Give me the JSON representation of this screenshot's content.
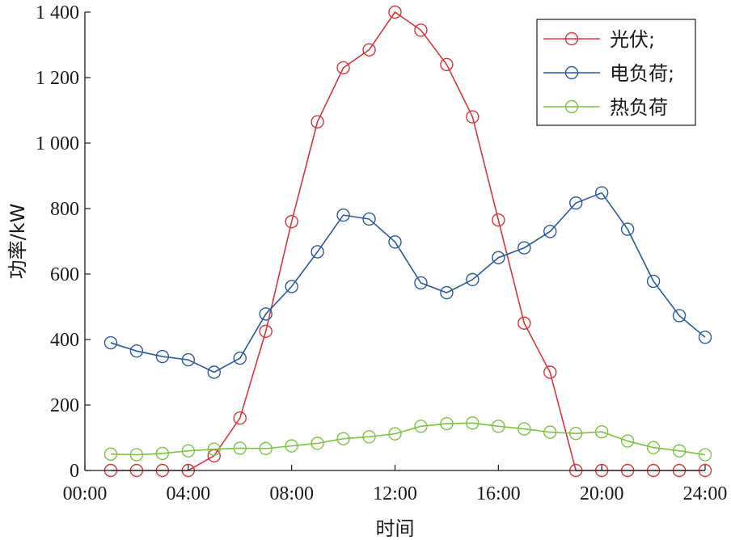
{
  "chart_data": {
    "type": "line",
    "title": "",
    "xlabel": "时间",
    "ylabel": "功率/kW",
    "x_tick_labels": [
      "00:00",
      "04:00",
      "08:00",
      "12:00",
      "16:00",
      "20:00",
      "24:00"
    ],
    "y_tick_labels": [
      "0",
      "200",
      "400",
      "600",
      "800",
      "1 000",
      "1 200",
      "1 400"
    ],
    "xlim": [
      0,
      24
    ],
    "ylim": [
      0,
      1400
    ],
    "x_ticks": [
      0,
      4,
      8,
      12,
      16,
      20,
      24
    ],
    "y_ticks": [
      0,
      200,
      400,
      600,
      800,
      1000,
      1200,
      1400
    ],
    "x": [
      1,
      2,
      3,
      4,
      5,
      6,
      7,
      8,
      9,
      10,
      11,
      12,
      13,
      14,
      15,
      16,
      17,
      18,
      19,
      20,
      21,
      22,
      23,
      24
    ],
    "grid": false,
    "legend_position": "top-right",
    "series": [
      {
        "name": "光伏;",
        "color": "#d9363a",
        "values": [
          0,
          0,
          0,
          0,
          45,
          160,
          425,
          760,
          1065,
          1230,
          1285,
          1400,
          1345,
          1240,
          1080,
          765,
          450,
          300,
          0,
          0,
          0,
          0,
          0,
          0
        ]
      },
      {
        "name": "电负荷;",
        "color": "#2a5aa0",
        "values": [
          390,
          365,
          348,
          338,
          300,
          343,
          478,
          562,
          668,
          780,
          768,
          698,
          573,
          543,
          583,
          650,
          680,
          730,
          817,
          848,
          737,
          578,
          473,
          407
        ]
      },
      {
        "name": "热负荷",
        "color": "#7cc243",
        "values": [
          50,
          48,
          52,
          60,
          65,
          68,
          67,
          75,
          83,
          97,
          103,
          112,
          135,
          143,
          145,
          135,
          127,
          117,
          113,
          118,
          90,
          70,
          60,
          48
        ]
      }
    ]
  }
}
